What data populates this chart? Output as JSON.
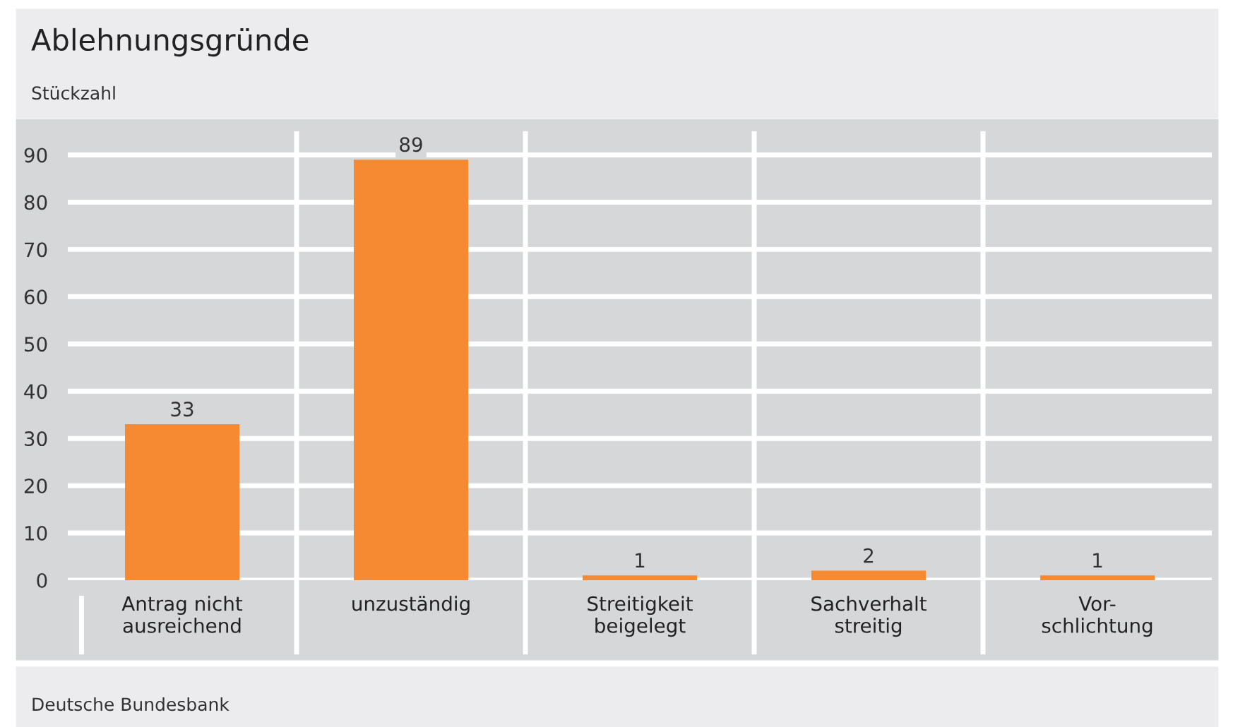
{
  "chart_data": {
    "type": "bar",
    "title": "Ablehnungsgründe",
    "subtitle": "Stückzahl",
    "categories": [
      "Antrag nicht\nausreichend",
      "unzuständig",
      "Streitigkeit\nbeigelegt",
      "Sachverhalt\nstreitig",
      "Vor-\nschlichtung"
    ],
    "values": [
      33,
      89,
      1,
      2,
      1
    ],
    "color": "#f58a32",
    "ylim": [
      0,
      95
    ],
    "yticks": [
      0,
      10,
      20,
      30,
      40,
      50,
      60,
      70,
      80,
      90
    ],
    "grid": true,
    "data_labels": true,
    "annotations": [
      "Deutsche Bundesbank"
    ]
  }
}
